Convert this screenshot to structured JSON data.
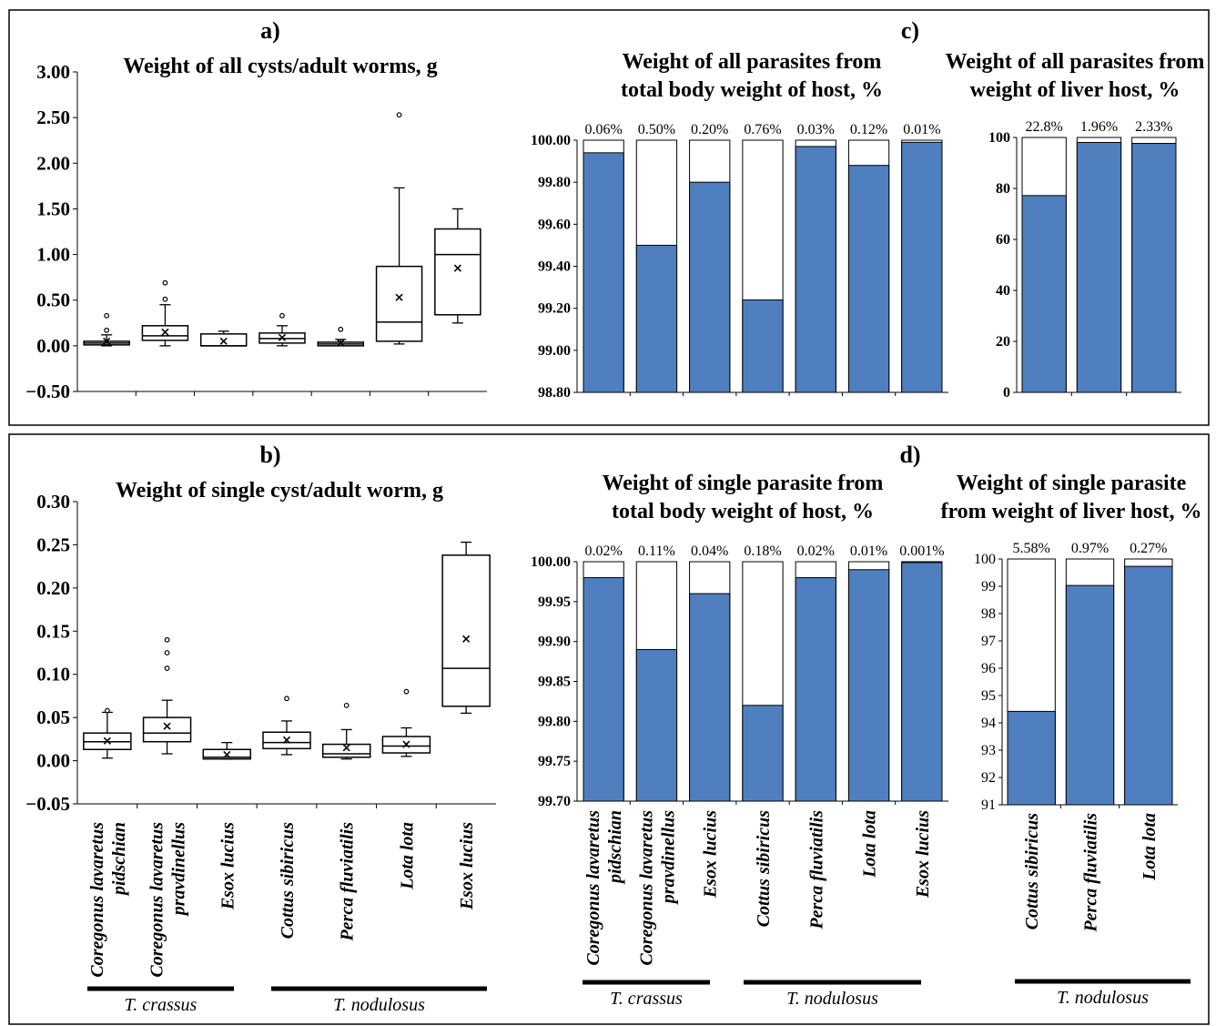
{
  "colors": {
    "filled": "#4F7FBF",
    "outline": "#000000"
  },
  "chart_data": [
    {
      "id": "a",
      "type": "box",
      "panel_label": "a)",
      "title": "Weight of all cysts/adult worms, g",
      "yticks": [
        "3.00",
        "2.50",
        "2.00",
        "1.50",
        "1.00",
        "0.50",
        "0.00",
        "−0.50"
      ],
      "ylim": [
        -0.5,
        3.0
      ],
      "boxes": [
        {
          "min": 0.0,
          "q1": 0.01,
          "median": 0.03,
          "q3": 0.05,
          "max": 0.12,
          "mean": 0.05,
          "outliers": [
            0.17,
            0.33
          ]
        },
        {
          "min": 0.0,
          "q1": 0.06,
          "median": 0.11,
          "q3": 0.22,
          "max": 0.45,
          "mean": 0.15,
          "outliers": [
            0.51,
            0.69
          ]
        },
        {
          "min": 0.0,
          "q1": 0.0,
          "median": 0.0,
          "q3": 0.13,
          "max": 0.16,
          "mean": 0.05,
          "outliers": []
        },
        {
          "min": 0.0,
          "q1": 0.03,
          "median": 0.08,
          "q3": 0.14,
          "max": 0.22,
          "mean": 0.09,
          "outliers": [
            0.33
          ]
        },
        {
          "min": 0.0,
          "q1": 0.0,
          "median": 0.02,
          "q3": 0.04,
          "max": 0.07,
          "mean": 0.03,
          "outliers": [
            0.18
          ]
        },
        {
          "min": 0.02,
          "q1": 0.05,
          "median": 0.26,
          "q3": 0.87,
          "max": 1.73,
          "mean": 0.53,
          "outliers": [
            2.53
          ]
        },
        {
          "min": 0.25,
          "q1": 0.34,
          "median": 1.0,
          "q3": 1.28,
          "max": 1.5,
          "mean": 0.85,
          "outliers": []
        }
      ]
    },
    {
      "id": "b",
      "type": "box",
      "panel_label": "b)",
      "title": "Weight of single cyst/adult worm, g",
      "yticks": [
        "0.30",
        "0.25",
        "0.20",
        "0.15",
        "0.10",
        "0.05",
        "0.00",
        "−0.05"
      ],
      "ylim": [
        -0.05,
        0.3
      ],
      "categories": [
        "Coregonus lavaretus pidschian",
        "Coregonus lavaretus pravdinellus",
        "Esox lucius",
        "Cottus sibiricus",
        "Perca fluviatilis",
        "Lota lota",
        "Esox lucius"
      ],
      "category_lines": [
        [
          "Coregonus lavaretus",
          "pidschian"
        ],
        [
          "Coregonus lavaretus",
          "pravdinellus"
        ],
        [
          "Esox lucius"
        ],
        [
          "Cottus sibiricus"
        ],
        [
          "Perca fluviatilis"
        ],
        [
          "Lota lota"
        ],
        [
          "Esox lucius"
        ]
      ],
      "groups": [
        {
          "label": "T. crassus",
          "from": 0,
          "to": 2
        },
        {
          "label": "T. nodulosus",
          "from": 3,
          "to": 6
        }
      ],
      "boxes": [
        {
          "min": 0.003,
          "q1": 0.013,
          "median": 0.022,
          "q3": 0.032,
          "max": 0.056,
          "mean": 0.023,
          "outliers": [
            0.058
          ]
        },
        {
          "min": 0.008,
          "q1": 0.022,
          "median": 0.032,
          "q3": 0.05,
          "max": 0.07,
          "mean": 0.04,
          "outliers": [
            0.107,
            0.125,
            0.14
          ]
        },
        {
          "min": 0.002,
          "q1": 0.002,
          "median": 0.004,
          "q3": 0.013,
          "max": 0.021,
          "mean": 0.007,
          "outliers": []
        },
        {
          "min": 0.007,
          "q1": 0.014,
          "median": 0.021,
          "q3": 0.033,
          "max": 0.046,
          "mean": 0.024,
          "outliers": [
            0.072
          ]
        },
        {
          "min": 0.002,
          "q1": 0.004,
          "median": 0.008,
          "q3": 0.019,
          "max": 0.036,
          "mean": 0.015,
          "outliers": [
            0.064
          ]
        },
        {
          "min": 0.005,
          "q1": 0.009,
          "median": 0.017,
          "q3": 0.028,
          "max": 0.038,
          "mean": 0.019,
          "outliers": [
            0.08
          ]
        },
        {
          "min": 0.055,
          "q1": 0.063,
          "median": 0.107,
          "q3": 0.238,
          "max": 0.253,
          "mean": 0.141,
          "outliers": []
        }
      ]
    },
    {
      "id": "c1",
      "type": "bar",
      "panel_label": "c)",
      "title": [
        "Weight of all parasites from",
        "total body weight of host, %"
      ],
      "yticks": [
        "100.00",
        "99.80",
        "99.60",
        "99.40",
        "99.20",
        "99.00",
        "98.80"
      ],
      "ylim": [
        98.8,
        100.0
      ],
      "values": [
        99.94,
        99.5,
        99.8,
        99.24,
        99.97,
        99.88,
        99.99
      ],
      "labels": [
        "0.06%",
        "0.50%",
        "0.20%",
        "0.76%",
        "0.03%",
        "0.12%",
        "0.01%"
      ]
    },
    {
      "id": "c2",
      "type": "bar",
      "title": [
        "Weight of all parasites from",
        "weight of liver host, %"
      ],
      "yticks": [
        "100",
        "80",
        "60",
        "40",
        "20",
        "0"
      ],
      "ylim": [
        0,
        100
      ],
      "values": [
        77.2,
        98.04,
        97.67
      ],
      "labels": [
        "22.8%",
        "1.96%",
        "2.33%"
      ]
    },
    {
      "id": "d1",
      "type": "bar",
      "panel_label": "d)",
      "title": [
        "Weight of single parasite from",
        "total body weight of host, %"
      ],
      "yticks": [
        "100.00",
        "99.95",
        "99.90",
        "99.85",
        "99.80",
        "99.75",
        "99.70"
      ],
      "ylim": [
        99.7,
        100.0
      ],
      "values": [
        99.98,
        99.89,
        99.96,
        99.82,
        99.98,
        99.99,
        99.999
      ],
      "labels": [
        "0.02%",
        "0.11%",
        "0.04%",
        "0.18%",
        "0.02%",
        "0.01%",
        "0.001%"
      ],
      "category_lines": [
        [
          "Coregonus lavaretus",
          "pidschian"
        ],
        [
          "Coregonus lavaretus",
          "pravdinellus"
        ],
        [
          "Esox lucius"
        ],
        [
          "Cottus sibiricus"
        ],
        [
          "Perca fluviatilis"
        ],
        [
          "Lota lota"
        ],
        [
          "Esox lucius"
        ]
      ],
      "groups": [
        {
          "label": "T. crassus",
          "from": 0,
          "to": 2
        },
        {
          "label": "T. nodulosus",
          "from": 3,
          "to": 6
        }
      ]
    },
    {
      "id": "d2",
      "type": "bar",
      "title": [
        "Weight of single parasite",
        "from weight of liver host, %"
      ],
      "yticks": [
        "100",
        "99",
        "98",
        "97",
        "96",
        "95",
        "94",
        "93",
        "92",
        "91"
      ],
      "ylim": [
        91,
        100
      ],
      "values": [
        94.42,
        99.03,
        99.73
      ],
      "labels": [
        "5.58%",
        "0.97%",
        "0.27%"
      ],
      "category_lines": [
        [
          "Cottus sibiricus"
        ],
        [
          "Perca fluviatilis"
        ],
        [
          "Lota lota"
        ]
      ],
      "groups": [
        {
          "label": "T. nodulosus",
          "from": 0,
          "to": 2
        }
      ]
    }
  ]
}
